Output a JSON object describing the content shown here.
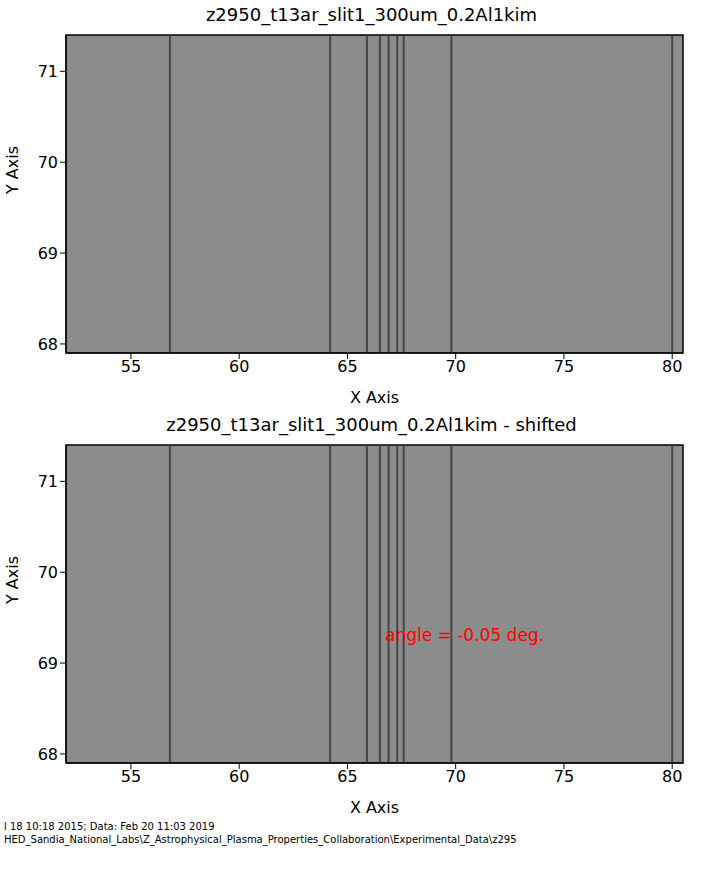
{
  "chart_data": [
    {
      "type": "image",
      "title": "z2950_t13ar_slit1_300um_0.2Al1kim",
      "x_label": "X Axis",
      "y_label": "Y Axis",
      "xlim": [
        52,
        80.5
      ],
      "ylim": [
        67.9,
        71.4
      ],
      "xticks": [
        55,
        60,
        65,
        70,
        75,
        80
      ],
      "yticks": [
        68,
        69,
        70,
        71
      ],
      "lines": [
        56.8,
        64.2,
        65.9,
        66.5,
        66.9,
        67.3,
        67.6,
        69.8,
        80.0
      ]
    },
    {
      "type": "image",
      "title": "z2950_t13ar_slit1_300um_0.2Al1kim - shifted",
      "x_label": "X Axis",
      "y_label": "Y Axis",
      "xlim": [
        52,
        80.5
      ],
      "ylim": [
        67.9,
        71.4
      ],
      "xticks": [
        55,
        60,
        65,
        70,
        75,
        80
      ],
      "yticks": [
        68,
        69,
        70,
        71
      ],
      "lines": [
        56.8,
        64.2,
        65.9,
        66.5,
        66.9,
        67.3,
        67.6,
        69.8,
        80.0
      ],
      "annotation": "angle = -0.05 deg."
    }
  ],
  "footer": [
    "l 18 10:18 2015; Data: Feb 20 11:03 2019",
    "HED_Sandia_National_Labs\\Z_Astrophysical_Plasma_Properties_Collaboration\\Experimental_Data\\z295"
  ]
}
